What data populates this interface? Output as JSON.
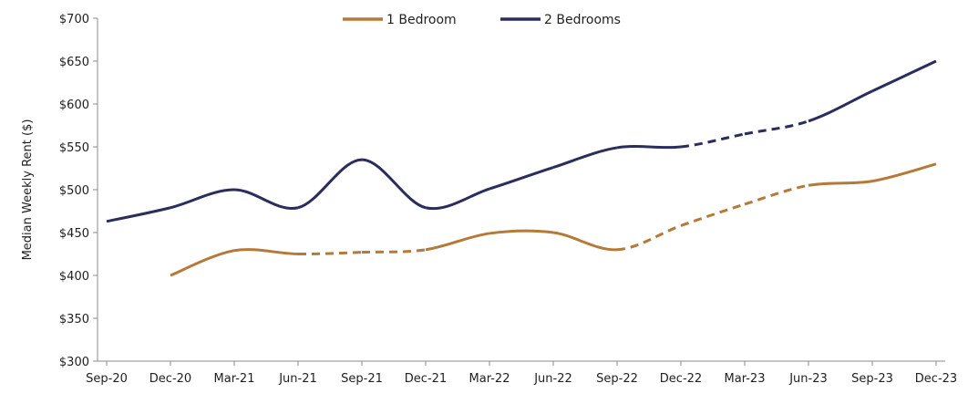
{
  "chart_data": {
    "type": "line",
    "ylabel": "Median Weekly Rent ($)",
    "xlabel": "",
    "ylim": [
      300,
      700
    ],
    "ytick_step": 50,
    "ytick_labels": [
      "$300",
      "$350",
      "$400",
      "$450",
      "$500",
      "$550",
      "$600",
      "$650",
      "$700"
    ],
    "categories": [
      "Sep-20",
      "Dec-20",
      "Mar-21",
      "Jun-21",
      "Sep-21",
      "Dec-21",
      "Mar-22",
      "Jun-22",
      "Sep-22",
      "Dec-22",
      "Mar-23",
      "Jun-23",
      "Sep-23",
      "Dec-23"
    ],
    "legend_position": "top-center",
    "grid": false,
    "series": [
      {
        "name": "1 Bedroom",
        "color": "#b5793a",
        "values": [
          null,
          400,
          429,
          425,
          427,
          430,
          449,
          450,
          430,
          458,
          483,
          505,
          510,
          530
        ],
        "dashed_segments": [
          [
            3,
            5
          ],
          [
            8,
            11
          ]
        ]
      },
      {
        "name": "2 Bedrooms",
        "color": "#2b2d5c",
        "values": [
          463,
          479,
          500,
          479,
          535,
          479,
          501,
          526,
          549,
          550,
          565,
          580,
          615,
          650
        ],
        "dashed_segments": [
          [
            9,
            11
          ]
        ]
      }
    ]
  }
}
